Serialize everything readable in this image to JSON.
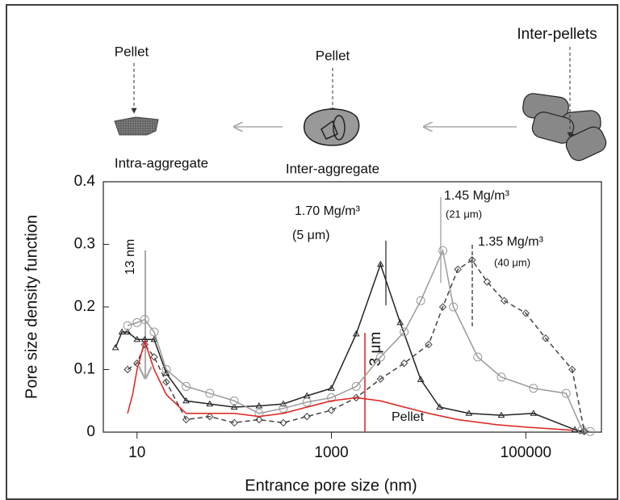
{
  "schematic": {
    "pellet_left": "Pellet",
    "pellet_middle": "Pellet",
    "inter_pellets": "Inter-pellets",
    "intra_aggregate": "Intra-aggregate",
    "inter_aggregate": "Inter-aggregate"
  },
  "chart_data": {
    "type": "line",
    "x_label": "Entrance pore size (nm)",
    "y_label": "Pore size density function",
    "xscale": "log",
    "xlim": [
      4.5,
      600000
    ],
    "ylim": [
      0,
      0.4
    ],
    "xticks": [
      10,
      1000,
      100000
    ],
    "yticks": [
      0,
      0.1,
      0.2,
      0.3,
      0.4
    ],
    "annotations": [
      "(5 μm)",
      "(21 μm)",
      "(40 μm)",
      "13 nm",
      "3 μm"
    ],
    "series": [
      {
        "name": "1.70 Mg/m³",
        "color": "#222222",
        "marker": "triangle",
        "dash": false,
        "x": [
          6,
          7,
          8,
          10,
          12,
          15,
          20,
          32,
          56,
          100,
          180,
          320,
          560,
          1000,
          1800,
          3200,
          5100,
          8300,
          13000,
          26000,
          56000,
          120000,
          320000,
          380000
        ],
        "values": [
          0.135,
          0.16,
          0.16,
          0.148,
          0.148,
          0.148,
          0.094,
          0.05,
          0.045,
          0.04,
          0.042,
          0.045,
          0.058,
          0.07,
          0.157,
          0.268,
          0.175,
          0.084,
          0.04,
          0.03,
          0.027,
          0.03,
          0.004,
          0.001
        ]
      },
      {
        "name": "1.45 Mg/m³",
        "color": "#9a9a9a",
        "marker": "circle",
        "dash": false,
        "x": [
          8,
          10,
          12,
          15,
          20,
          32,
          56,
          100,
          180,
          320,
          560,
          1000,
          1800,
          3200,
          5600,
          8300,
          14000,
          18000,
          32000,
          56000,
          120000,
          260000,
          380000,
          460000
        ],
        "values": [
          0.17,
          0.175,
          0.18,
          0.16,
          0.1,
          0.073,
          0.062,
          0.05,
          0.03,
          0.038,
          0.048,
          0.055,
          0.073,
          0.12,
          0.16,
          0.21,
          0.29,
          0.2,
          0.12,
          0.088,
          0.07,
          0.062,
          0.004,
          0.001
        ]
      },
      {
        "name": "1.35 Mg/m³",
        "color": "#444444",
        "marker": "diamond",
        "dash": true,
        "x": [
          8,
          10,
          12,
          15,
          20,
          32,
          56,
          100,
          180,
          320,
          560,
          1000,
          1800,
          3200,
          5600,
          10000,
          14000,
          20000,
          28000,
          40000,
          60000,
          100000,
          160000,
          300000,
          400000
        ],
        "values": [
          0.1,
          0.11,
          0.14,
          0.12,
          0.08,
          0.02,
          0.025,
          0.015,
          0.02,
          0.015,
          0.025,
          0.035,
          0.055,
          0.085,
          0.11,
          0.14,
          0.2,
          0.26,
          0.275,
          0.24,
          0.21,
          0.19,
          0.15,
          0.1,
          0.001
        ]
      },
      {
        "name": "Pellet",
        "color": "#e0201b",
        "marker": "none",
        "dash": false,
        "x": [
          8,
          9,
          10,
          12,
          15,
          20,
          32,
          56,
          100,
          180,
          320,
          560,
          1000,
          1800,
          3200,
          5600,
          10000,
          20000,
          50000,
          100000,
          300000
        ],
        "values": [
          0.03,
          0.06,
          0.1,
          0.145,
          0.1,
          0.06,
          0.03,
          0.03,
          0.03,
          0.025,
          0.03,
          0.04,
          0.05,
          0.055,
          0.05,
          0.04,
          0.03,
          0.02,
          0.012,
          0.008,
          0.003
        ]
      }
    ]
  }
}
